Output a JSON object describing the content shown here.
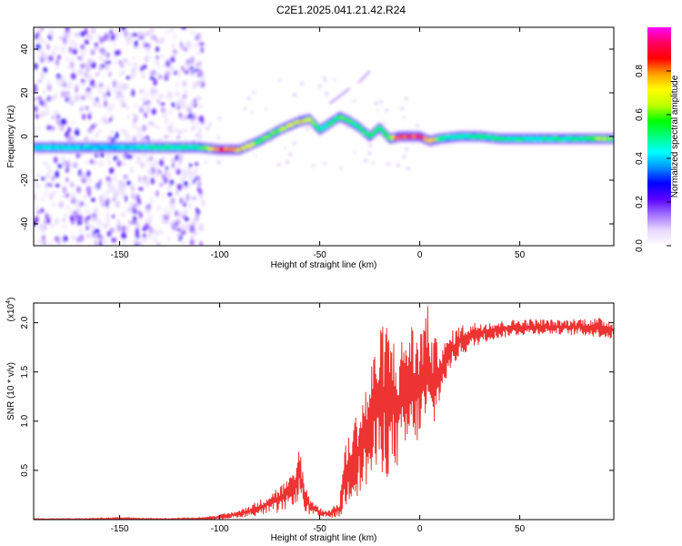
{
  "title": "C2E1.2025.041.21.42.R24",
  "chart_data": [
    {
      "type": "heatmap",
      "xlabel": "Height of straight line (km)",
      "ylabel": "Frequency (Hz)",
      "xlim": [
        -193,
        97
      ],
      "ylim": [
        -50,
        50
      ],
      "xticks": [
        -150,
        -100,
        -50,
        0,
        50
      ],
      "yticks": [
        -40,
        -20,
        0,
        20,
        40
      ],
      "grid": false,
      "colorbar": {
        "label": "Normalized spectral amplitude",
        "range": [
          0,
          1
        ],
        "ticks": [
          "0.0",
          "0.2",
          "0.4",
          "0.6",
          "0.8"
        ],
        "colormap": [
          "#ffffff",
          "#e8d8ff",
          "#a070ff",
          "#5a00ff",
          "#0000ff",
          "#0090ff",
          "#00ffff",
          "#00ff80",
          "#00ff00",
          "#c0ff00",
          "#ffff00",
          "#ffa000",
          "#ff0000",
          "#ff0060",
          "#ff00ff"
        ]
      },
      "center_line": {
        "x": [
          -193,
          -150,
          -110,
          -100,
          -90,
          -80,
          -70,
          -60,
          -55,
          -50,
          -45,
          -40,
          -35,
          -30,
          -25,
          -20,
          -15,
          -10,
          -5,
          0,
          5,
          10,
          20,
          30,
          40,
          50,
          60,
          70,
          80,
          90,
          97
        ],
        "y": [
          -5,
          -5,
          -5,
          -6,
          -6,
          -2,
          3,
          7,
          8,
          3,
          6,
          9,
          7,
          4,
          0,
          4,
          -1,
          0,
          0,
          0,
          -2,
          -1,
          0,
          0,
          -1,
          -1,
          -1,
          -1,
          -1,
          -1,
          -1
        ],
        "amplitude": [
          0.45,
          0.45,
          0.55,
          0.95,
          0.8,
          0.6,
          0.7,
          0.75,
          0.7,
          0.5,
          0.55,
          0.6,
          0.6,
          0.55,
          0.6,
          0.55,
          0.6,
          0.98,
          0.95,
          0.95,
          0.9,
          0.55,
          0.5,
          0.55,
          0.55,
          0.5,
          0.5,
          0.55,
          0.5,
          0.7,
          0.6
        ]
      },
      "noise_region_x": [
        -193,
        -108
      ]
    },
    {
      "type": "line",
      "xlabel": "Height of straight line (km)",
      "ylabel": "SNR (10 * v/v)",
      "y_multiplier": "(x10",
      "y_multiplier_exp": "4",
      "y_multiplier_close": ")",
      "xlim": [
        -193,
        97
      ],
      "ylim": [
        0,
        2.2
      ],
      "xticks": [
        -150,
        -100,
        -50,
        0,
        50
      ],
      "yticks": [
        "0.5",
        "1.0",
        "1.5",
        "2.0"
      ],
      "grid": false,
      "color": "#ee3333",
      "series": [
        {
          "x": [
            -193,
            -170,
            -150,
            -130,
            -110,
            -100,
            -90,
            -80,
            -75,
            -70,
            -67,
            -64,
            -62,
            -60,
            -58,
            -55,
            -50,
            -45,
            -40,
            -38,
            -35,
            -30,
            -25,
            -22,
            -20,
            -18,
            -15,
            -12,
            -10,
            -8,
            -5,
            -2,
            0,
            3,
            5,
            7,
            10,
            13,
            15,
            18,
            20,
            25,
            30,
            35,
            40,
            45,
            50,
            60,
            70,
            80,
            90,
            97
          ],
          "envelope_low": [
            0.0,
            0.0,
            0.0,
            0.0,
            0.0,
            0.0,
            0.02,
            0.04,
            0.06,
            0.06,
            0.1,
            0.15,
            0.15,
            0.2,
            0.1,
            0.03,
            0.02,
            0.02,
            0.02,
            0.05,
            0.2,
            0.25,
            0.35,
            0.4,
            0.45,
            0.45,
            0.4,
            0.5,
            0.55,
            0.6,
            0.65,
            0.75,
            0.8,
            0.9,
            0.85,
            0.9,
            1.2,
            1.4,
            1.5,
            1.6,
            1.65,
            1.72,
            1.78,
            1.82,
            1.84,
            1.86,
            1.87,
            1.88,
            1.88,
            1.87,
            1.85,
            1.82
          ],
          "envelope_high": [
            0.01,
            0.01,
            0.02,
            0.01,
            0.02,
            0.05,
            0.1,
            0.2,
            0.28,
            0.35,
            0.4,
            0.45,
            0.5,
            0.85,
            0.4,
            0.25,
            0.12,
            0.1,
            0.2,
            0.7,
            0.9,
            1.2,
            1.5,
            1.85,
            1.9,
            2.05,
            2.0,
            1.8,
            1.75,
            1.95,
            2.08,
            1.9,
            1.95,
            2.2,
            2.15,
            1.85,
            1.85,
            1.8,
            1.9,
            1.95,
            1.98,
            2.0,
            2.02,
            2.02,
            2.02,
            2.03,
            2.04,
            2.04,
            2.03,
            2.05,
            2.05,
            2.03
          ]
        }
      ]
    }
  ]
}
